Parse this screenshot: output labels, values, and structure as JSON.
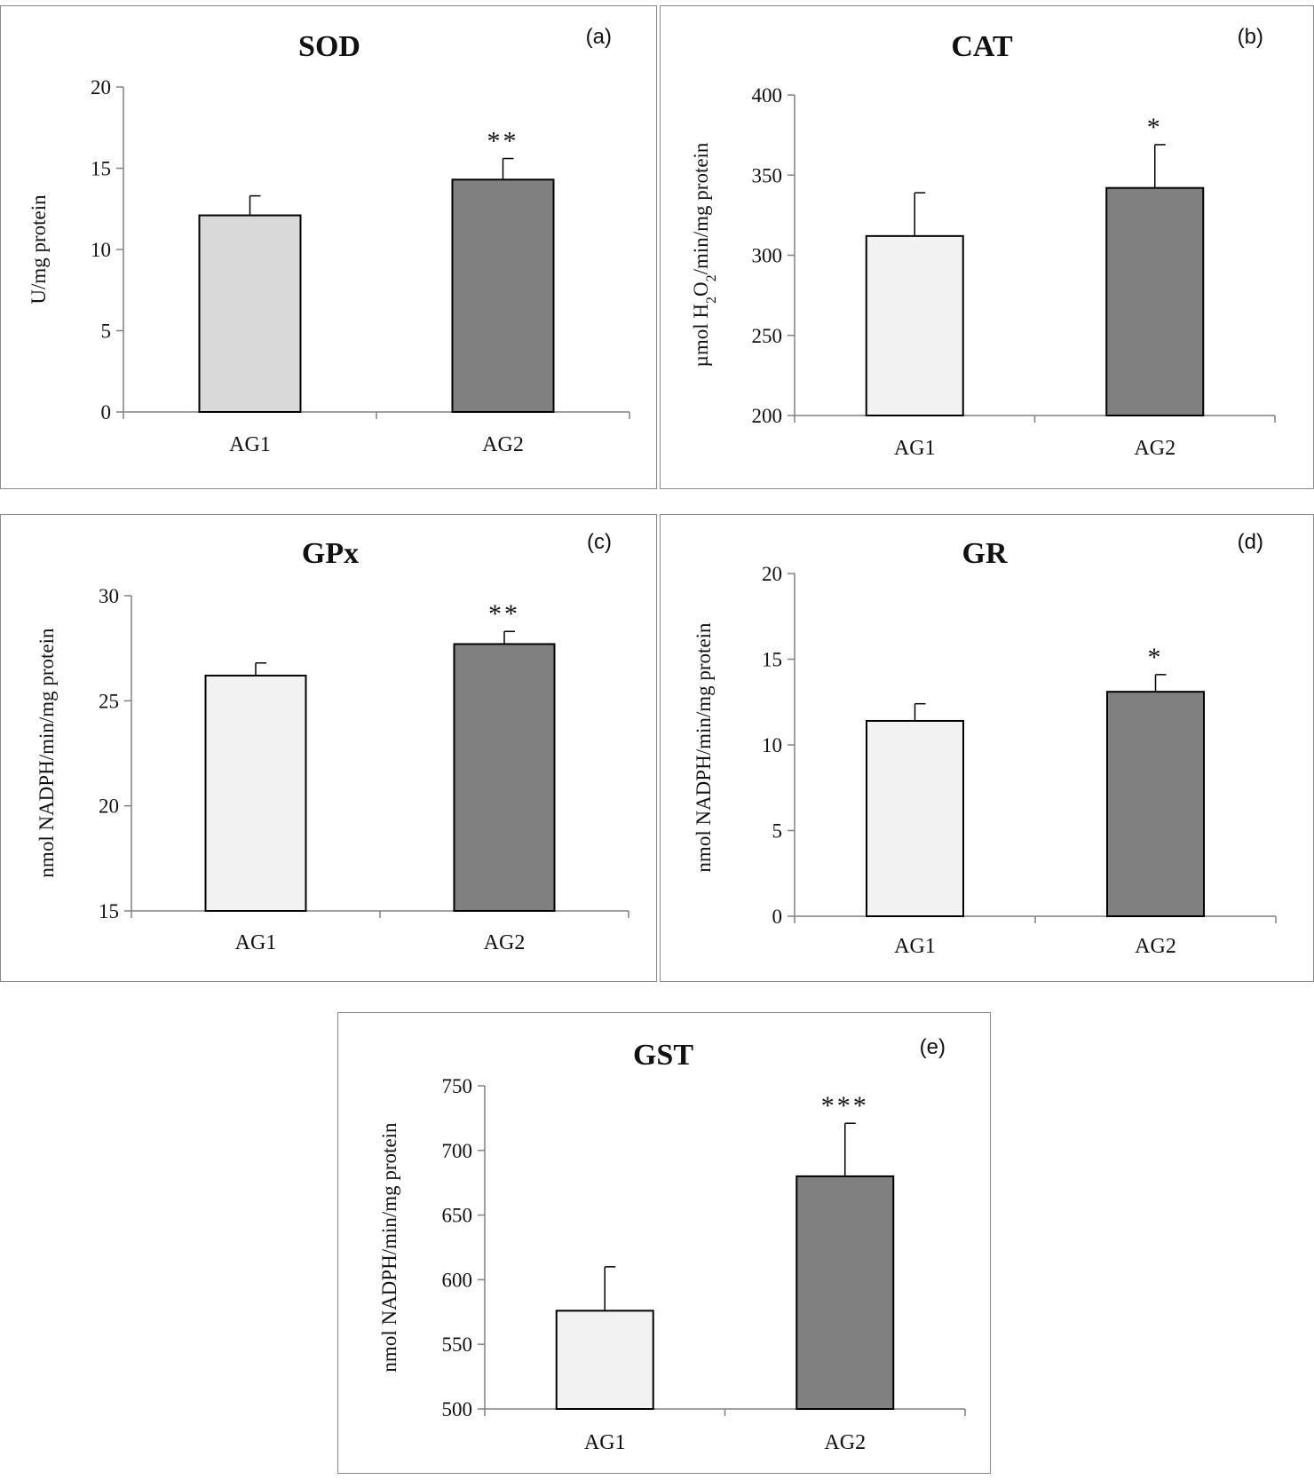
{
  "colors": {
    "bar_light_a": "#d9d9d9",
    "bar_light": "#f2f2f2",
    "bar_dark": "#808080",
    "axis": "#808080",
    "border": "#8a8a8a"
  },
  "chart_data": [
    {
      "type": "bar",
      "panel": "(a)",
      "title": "SOD",
      "ylabel": "U/mg protein",
      "ylabel_parts": [
        {
          "t": "U/mg protein"
        }
      ],
      "categories": [
        "AG1",
        "AG2"
      ],
      "values": [
        12.1,
        14.3
      ],
      "errors": [
        1.2,
        1.3
      ],
      "significance": [
        "",
        "**"
      ],
      "ylim": [
        0,
        20
      ],
      "yticks": [
        0,
        5,
        10,
        15,
        20
      ],
      "bar_colors": [
        "#d9d9d9",
        "#808080"
      ]
    },
    {
      "type": "bar",
      "panel": "(b)",
      "title": "CAT",
      "ylabel": "µmol H2O2/min/mg protein",
      "ylabel_parts": [
        {
          "t": "µmol H"
        },
        {
          "t": "2",
          "sub": true
        },
        {
          "t": "O"
        },
        {
          "t": "2",
          "sub": true
        },
        {
          "t": "/min/mg protein"
        }
      ],
      "categories": [
        "AG1",
        "AG2"
      ],
      "values": [
        312,
        342
      ],
      "errors": [
        27,
        27
      ],
      "significance": [
        "",
        "*"
      ],
      "ylim": [
        200,
        400
      ],
      "yticks": [
        200,
        250,
        300,
        350,
        400
      ],
      "bar_colors": [
        "#f2f2f2",
        "#808080"
      ]
    },
    {
      "type": "bar",
      "panel": "(c)",
      "title": "GPx",
      "ylabel": "nmol NADPH/min/mg protein",
      "ylabel_parts": [
        {
          "t": "nmol NADPH/min/mg protein"
        }
      ],
      "categories": [
        "AG1",
        "AG2"
      ],
      "values": [
        26.2,
        27.7
      ],
      "errors": [
        0.6,
        0.6
      ],
      "significance": [
        "",
        "**"
      ],
      "ylim": [
        15,
        30
      ],
      "yticks": [
        15,
        20,
        25,
        30
      ],
      "bar_colors": [
        "#f2f2f2",
        "#808080"
      ]
    },
    {
      "type": "bar",
      "panel": "(d)",
      "title": "GR",
      "ylabel": "nmol NADPH/min/mg protein",
      "ylabel_parts": [
        {
          "t": "nmol NADPH/min/mg protein"
        }
      ],
      "categories": [
        "AG1",
        "AG2"
      ],
      "values": [
        11.4,
        13.1
      ],
      "errors": [
        1.0,
        1.0
      ],
      "significance": [
        "",
        "*"
      ],
      "ylim": [
        0,
        20
      ],
      "yticks": [
        0,
        5,
        10,
        15,
        20
      ],
      "bar_colors": [
        "#f2f2f2",
        "#808080"
      ]
    },
    {
      "type": "bar",
      "panel": "(e)",
      "title": "GST",
      "ylabel": "nmol NADPH/min/mg protein",
      "ylabel_parts": [
        {
          "t": "nmol NADPH/min/mg protein"
        }
      ],
      "categories": [
        "AG1",
        "AG2"
      ],
      "values": [
        576,
        680
      ],
      "errors": [
        34,
        41
      ],
      "significance": [
        "",
        "***"
      ],
      "ylim": [
        500,
        750
      ],
      "yticks": [
        500,
        550,
        600,
        650,
        700,
        750
      ],
      "bar_colors": [
        "#f2f2f2",
        "#808080"
      ]
    }
  ]
}
